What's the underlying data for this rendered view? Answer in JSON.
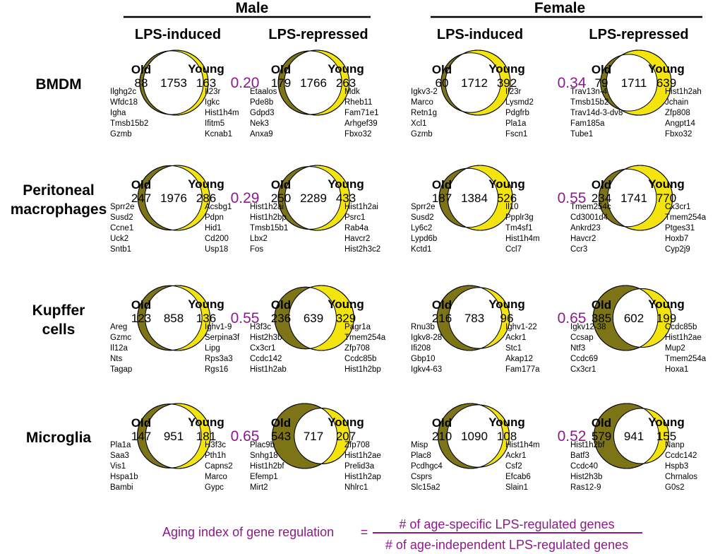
{
  "colors": {
    "old": "#7d7418",
    "young": "#f2e40c",
    "index": "#8b1a8b"
  },
  "headers": {
    "sexes": [
      "Male",
      "Female"
    ],
    "conditions": [
      "LPS-induced",
      "LPS-repressed",
      "LPS-induced",
      "LPS-repressed"
    ]
  },
  "labels": {
    "old": "Old",
    "young": "Young"
  },
  "rows": [
    {
      "label": [
        "BMDM"
      ],
      "indices": [
        "0.20",
        "0.34"
      ],
      "panels": [
        {
          "old": 88,
          "shared": 1753,
          "young": 163,
          "old_genes": [
            "Ilghg2c",
            "Wfdc18",
            "Igha",
            "Tmsb15b2",
            "Gzmb"
          ],
          "young_genes": [
            "Il23r",
            "Igkc",
            "Hist1h4m",
            "Ifitm5",
            "Kcnab1"
          ]
        },
        {
          "old": 179,
          "shared": 1766,
          "young": 263,
          "old_genes": [
            "Etaalos",
            "Pde8b",
            "Gdpd3",
            "Nek3",
            "Anxa9"
          ],
          "young_genes": [
            "Mdk",
            "Rheb11",
            "Fam71e1",
            "Arhgef39",
            "Fbxo32"
          ]
        },
        {
          "old": 60,
          "shared": 1712,
          "young": 392,
          "old_genes": [
            "Igkv3-2",
            "Marco",
            "Retn1g",
            "Xcl1",
            "Gzmb"
          ],
          "young_genes": [
            "Il23r",
            "Lysmd2",
            "Pdgfrb",
            "Pla1a",
            "Fscn1"
          ]
        },
        {
          "old": 79,
          "shared": 1711,
          "young": 639,
          "old_genes": [
            "Trav13n-4",
            "Tmsb15b2",
            "Trav14d-3-dv8",
            "Fam185a",
            "Tube1"
          ],
          "young_genes": [
            "Hist1h2ah",
            "Jchain",
            "Zfp808",
            "Angpt14",
            "Fbxo32"
          ]
        }
      ]
    },
    {
      "label": [
        "Peritoneal",
        "macrophages"
      ],
      "indices": [
        "0.29",
        "0.55"
      ],
      "panels": [
        {
          "old": 247,
          "shared": 1976,
          "young": 286,
          "old_genes": [
            "Sprr2e",
            "Susd2",
            "Ccne1",
            "Uck2",
            "Sntb1"
          ],
          "young_genes": [
            "Acsbg1",
            "Pdpn",
            "Hid1",
            "Cd200",
            "Usp18"
          ]
        },
        {
          "old": 250,
          "shared": 2289,
          "young": 433,
          "old_genes": [
            "Hist1h2ai",
            "Hist1h2bp",
            "Tmsb15b1",
            "Lbx2",
            "Fos"
          ],
          "young_genes": [
            "Hist1h2ai",
            "Psrc1",
            "Rab4a",
            "Havcr2",
            "Hist2h3c2"
          ]
        },
        {
          "old": 187,
          "shared": 1384,
          "young": 526,
          "old_genes": [
            "Sprr2e",
            "Susd2",
            "Ly6c2",
            "Lypd6b",
            "Kctd1"
          ],
          "young_genes": [
            "Il10",
            "Ppplr3g",
            "Tm4sf1",
            "Hist1h4m",
            "Ccl7"
          ]
        },
        {
          "old": 234,
          "shared": 1741,
          "young": 770,
          "old_genes": [
            "Tmem254c",
            "Cd3001d4",
            "Ankrd23",
            "Havcr2",
            "Ccr3"
          ],
          "young_genes": [
            "Cx3cr1",
            "Tmem254a",
            "Ptges31",
            "Hoxb7",
            "Cyp2j9"
          ]
        }
      ]
    },
    {
      "label": [
        "Kupffer",
        "cells"
      ],
      "indices": [
        "0.55",
        "0.65"
      ],
      "panels": [
        {
          "old": 123,
          "shared": 858,
          "young": 136,
          "old_genes": [
            "Areg",
            "Gzmc",
            "Il12a",
            "Nts",
            "Tagap"
          ],
          "young_genes": [
            "Ighv1-9",
            "Serpina3f",
            "Lipg",
            "Rps3a3",
            "Rgs16"
          ]
        },
        {
          "old": 236,
          "shared": 639,
          "young": 329,
          "old_genes": [
            "H3f3c",
            "Hist2h3b",
            "Cx3cr1",
            "Ccdc142",
            "Hist1h2ab"
          ],
          "young_genes": [
            "Pagr1a",
            "Tmem254a",
            "Zfp708",
            "Ccdc85b",
            "Hist1h2bp"
          ]
        },
        {
          "old": 216,
          "shared": 783,
          "young": 96,
          "old_genes": [
            "Rnu3b",
            "Igkv8-28",
            "Ifi208",
            "Gbp10",
            "Igkv4-63"
          ],
          "young_genes": [
            "Ighv1-22",
            "Ackr1",
            "Stc1",
            "Akap12",
            "Fam177a"
          ]
        },
        {
          "old": 385,
          "shared": 602,
          "young": 199,
          "old_genes": [
            "Igkv12-38",
            "Ccsap",
            "Ntf3",
            "Ccdc69",
            "Cx3cr1"
          ],
          "young_genes": [
            "Ccdc85b",
            "Hist1h2ae",
            "Mup2",
            "Tmem254a",
            "Hoxa1"
          ]
        }
      ]
    },
    {
      "label": [
        "Microglia"
      ],
      "indices": [
        "0.65",
        "0.52"
      ],
      "panels": [
        {
          "old": 147,
          "shared": 951,
          "young": 181,
          "old_genes": [
            "Pla1a",
            "Saa3",
            "Vis1",
            "Hspa1b",
            "Bambi"
          ],
          "young_genes": [
            "H3f3c",
            "Pth1h",
            "Capns2",
            "Marco",
            "Gypc"
          ]
        },
        {
          "old": 543,
          "shared": 717,
          "young": 207,
          "old_genes": [
            "Plac9b",
            "Snhg18",
            "Hist1h2bf",
            "Efemp1",
            "Mirt2"
          ],
          "young_genes": [
            "Zfp708",
            "Hist1h2ae",
            "Prelid3a",
            "Hist1h2ap",
            "Nhlrc1"
          ]
        },
        {
          "old": 210,
          "shared": 1090,
          "young": 108,
          "old_genes": [
            "Misp",
            "Plac8",
            "Pcdhgc4",
            "Csprs",
            "Slc15a2"
          ],
          "young_genes": [
            "Hist1h4m",
            "Ackr1",
            "Csf2",
            "Efcab6",
            "Slain1"
          ]
        },
        {
          "old": 579,
          "shared": 941,
          "young": 155,
          "old_genes": [
            "Hist1h2bf",
            "Batf3",
            "Ccdc40",
            "Hist2h3b",
            "Ras12-9"
          ],
          "young_genes": [
            "Nanp",
            "Ccdc142",
            "Hspb3",
            "Chrnalos",
            "G0s2"
          ]
        }
      ]
    }
  ],
  "formula": {
    "lhs": "Aging index of gene regulation",
    "eq": "=",
    "numerator": "# of age-specific LPS-regulated genes",
    "denominator": "# of age-independent LPS-regulated genes"
  }
}
